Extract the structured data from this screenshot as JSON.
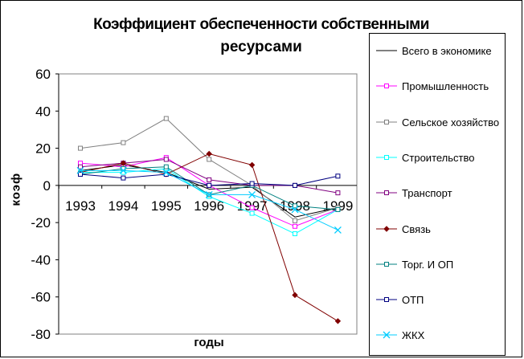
{
  "chart_data": {
    "type": "line",
    "title_line1": "Коэффициент обеспеченности собственными",
    "title_line2": "ресурсами",
    "xlabel": "годы",
    "ylabel": "коэф",
    "categories": [
      "1993",
      "1994",
      "1995",
      "1996",
      "1997",
      "1998",
      "1999"
    ],
    "ylim": [
      -80,
      60
    ],
    "yticks": [
      "60",
      "40",
      "20",
      "0",
      "-20",
      "-40",
      "-60",
      "-80"
    ],
    "grid": false,
    "legend_position": "right",
    "series": [
      {
        "name": "Всего в экономике",
        "color": "#000000",
        "marker": "none",
        "values": [
          8,
          11,
          7,
          -2,
          -1,
          -17,
          -12
        ]
      },
      {
        "name": "Промышленность",
        "color": "#ff00ff",
        "marker": "square",
        "values": [
          12,
          10,
          15,
          0,
          -12,
          -22,
          -13
        ]
      },
      {
        "name": "Сельское хозяйство",
        "color": "#808080",
        "marker": "square",
        "values": [
          20,
          23,
          36,
          14,
          0,
          -19,
          -12
        ]
      },
      {
        "name": "Строительство",
        "color": "#00ffff",
        "marker": "square",
        "values": [
          7,
          7,
          9,
          -6,
          -15,
          -26,
          -13
        ]
      },
      {
        "name": "Транспорт",
        "color": "#800080",
        "marker": "square",
        "values": [
          10,
          12,
          14,
          3,
          0,
          0,
          -4
        ]
      },
      {
        "name": "Связь",
        "color": "#800000",
        "marker": "diamond",
        "values": [
          7,
          12,
          6,
          17,
          11,
          -59,
          -73
        ]
      },
      {
        "name": "Торг.  И ОП",
        "color": "#008080",
        "marker": "square",
        "values": [
          6,
          9,
          10,
          -5,
          0,
          -11,
          -13
        ]
      },
      {
        "name": "ОТП",
        "color": "#000080",
        "marker": "square",
        "values": [
          6,
          4,
          6,
          0,
          1,
          0,
          5
        ]
      },
      {
        "name": "ЖКХ",
        "color": "#00ccff",
        "marker": "x",
        "values": [
          8,
          8,
          7,
          -5,
          -5,
          -13,
          -24
        ]
      }
    ]
  }
}
